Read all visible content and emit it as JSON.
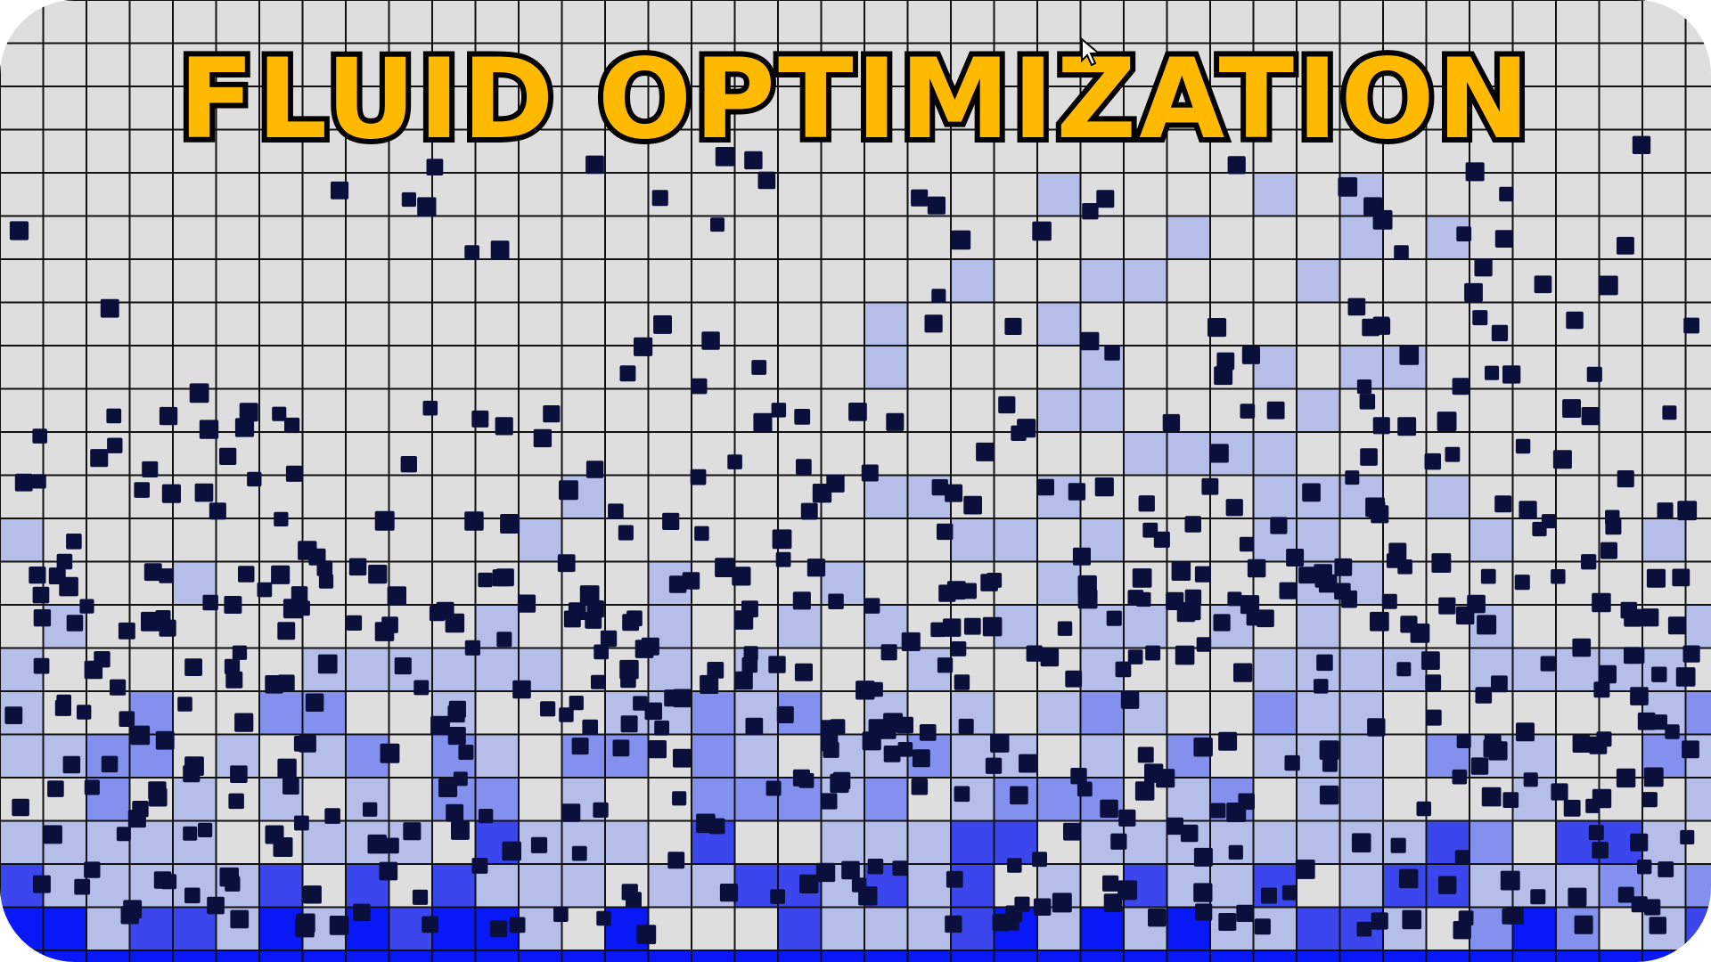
{
  "title": "FLUID OPTIMIZATION",
  "icons": {
    "cursor": "mouse-pointer-icon",
    "particle": "square-particle-icon"
  },
  "colors": {
    "background": "#dedede",
    "grid_line": "#111111",
    "particle": "#0a0f3c",
    "title_fill": "#ffba00",
    "title_outline": "#000000",
    "water_density_1": "#b5bde9",
    "water_density_2": "#8390ee",
    "water_density_3": "#3b46ec",
    "water_full": "#0818f6"
  }
}
